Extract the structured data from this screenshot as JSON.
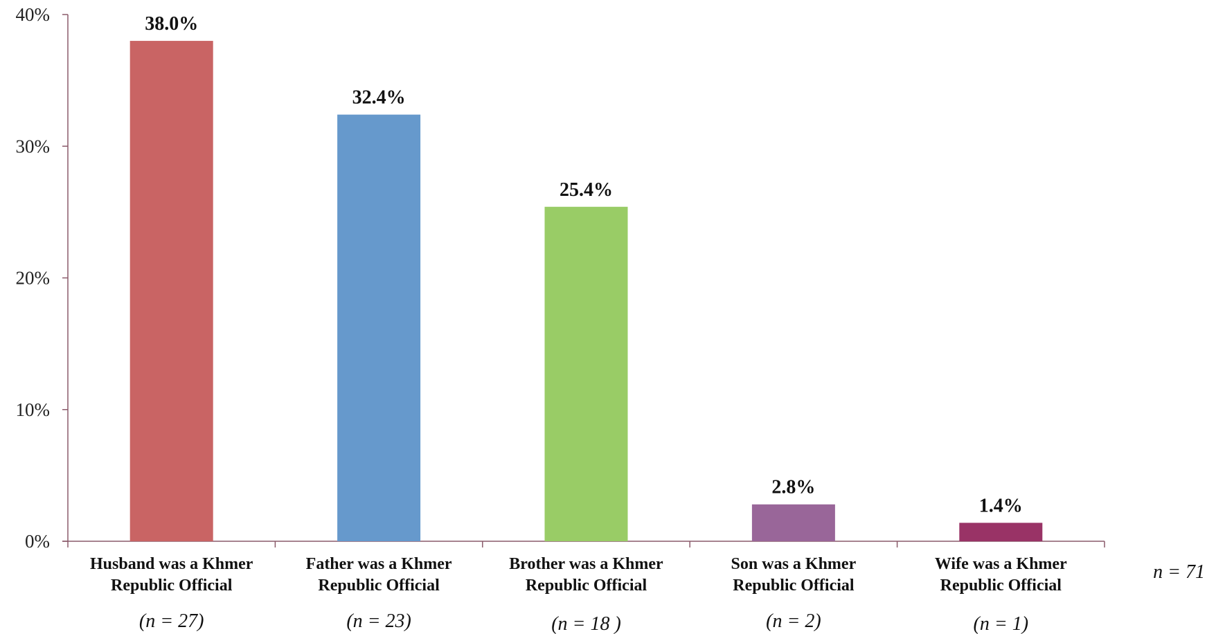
{
  "chart_data": {
    "type": "bar",
    "categories": [
      [
        "Husband was a Khmer",
        "Republic Official"
      ],
      [
        "Father was a Khmer",
        "Republic Official"
      ],
      [
        "Brother was a Khmer",
        "Republic Official"
      ],
      [
        "Son was a Khmer",
        "Republic Official"
      ],
      [
        "Wife was a Khmer",
        "Republic Official"
      ]
    ],
    "values": [
      38.0,
      32.4,
      25.4,
      2.8,
      1.4
    ],
    "data_labels": [
      "38.0%",
      "32.4%",
      "25.4%",
      "2.8%",
      "1.4%"
    ],
    "category_n": [
      "(n = 27)",
      "(n = 23)",
      "(n = 18 )",
      "(n = 2)",
      "(n = 1)"
    ],
    "colors": [
      "#c96464",
      "#6699cc",
      "#99cc66",
      "#996699",
      "#993366"
    ],
    "ylim": [
      0,
      40
    ],
    "y_ticks": [
      {
        "value": 0,
        "label": "0%"
      },
      {
        "value": 10,
        "label": "10%"
      },
      {
        "value": 20,
        "label": "20%"
      },
      {
        "value": 30,
        "label": "30%"
      },
      {
        "value": 40,
        "label": "40%"
      }
    ],
    "axis_color": "#8a5a6a",
    "total_n": "n = 71",
    "grid": false,
    "legend": "none"
  }
}
